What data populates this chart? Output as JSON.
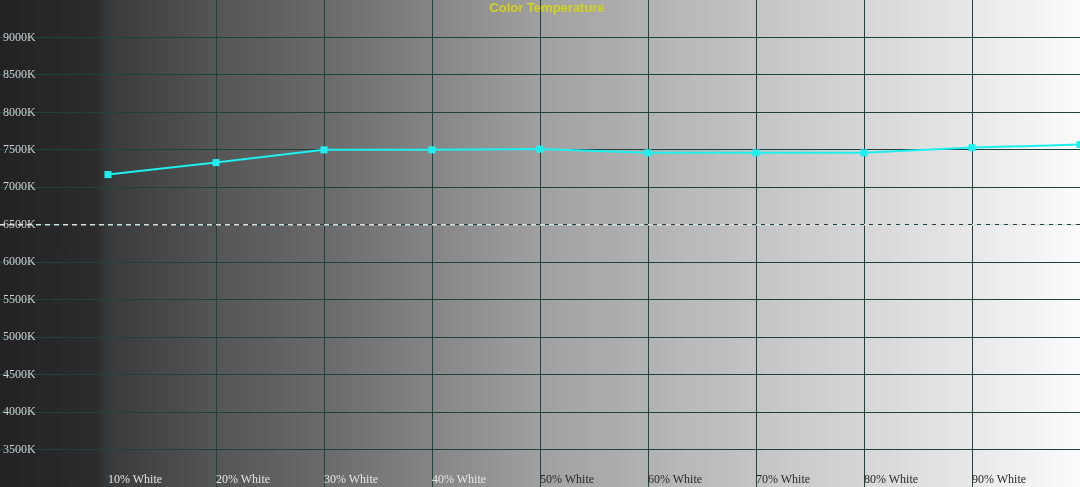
{
  "chart_data": {
    "type": "line",
    "title": "Color Temperature",
    "categories": [
      "10% White",
      "20% White",
      "30% White",
      "40% White",
      "50% White",
      "60% White",
      "70% White",
      "80% White",
      "90% White",
      null
    ],
    "series": [
      {
        "color": "#1ef0f0",
        "values": [
          7170,
          7330,
          7500,
          7500,
          7510,
          7460,
          7460,
          7460,
          7530,
          7570
        ]
      }
    ],
    "ylim": [
      3000,
      9500
    ],
    "yticks": [
      {
        "value": 3500,
        "label": "3500K"
      },
      {
        "value": 4000,
        "label": "4000K"
      },
      {
        "value": 4500,
        "label": "4500K"
      },
      {
        "value": 5000,
        "label": "5000K"
      },
      {
        "value": 5500,
        "label": "5500K"
      },
      {
        "value": 6000,
        "label": "6000K"
      },
      {
        "value": 6500,
        "label": "6500K"
      },
      {
        "value": 7000,
        "label": "7000K"
      },
      {
        "value": 7500,
        "label": "7500K"
      },
      {
        "value": 8000,
        "label": "8000K"
      },
      {
        "value": 8500,
        "label": "8500K"
      },
      {
        "value": 9000,
        "label": "9000K"
      }
    ],
    "ref_lines": [
      {
        "axis": "y",
        "value": 6500,
        "color": "#dddddd",
        "line_style": "dashed"
      }
    ],
    "grid": true,
    "legend": false,
    "marker": "square",
    "line_style": "solid"
  }
}
